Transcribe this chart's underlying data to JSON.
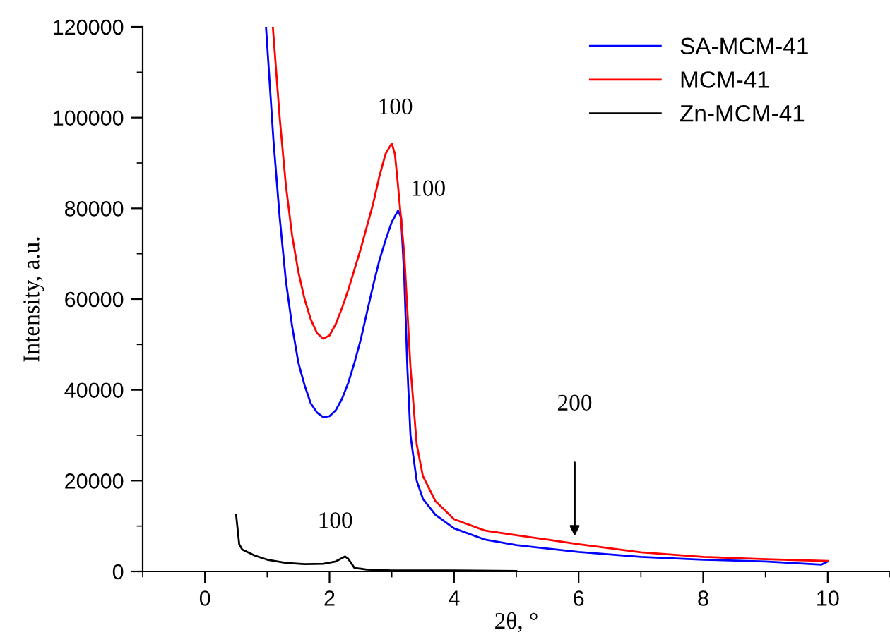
{
  "chart_data": {
    "type": "line",
    "xlabel": "2θ, °",
    "ylabel": "Intensity, a.u.",
    "xlim": [
      -1,
      11
    ],
    "ylim": [
      0,
      120000
    ],
    "xticks": [
      0,
      2,
      4,
      6,
      8,
      10
    ],
    "yticks": [
      0,
      20000,
      40000,
      60000,
      80000,
      100000,
      120000
    ],
    "grid": false,
    "legend": "top right",
    "marker": "none",
    "line_style": "solid",
    "series": [
      {
        "name": "SA-MCM-41",
        "color": "#0000ff",
        "x": [
          0.98,
          1.1,
          1.2,
          1.3,
          1.4,
          1.5,
          1.6,
          1.7,
          1.8,
          1.9,
          2.0,
          2.1,
          2.2,
          2.3,
          2.4,
          2.5,
          2.6,
          2.7,
          2.8,
          2.9,
          3.0,
          3.1,
          3.15,
          3.2,
          3.25,
          3.3,
          3.4,
          3.5,
          3.7,
          4.0,
          4.5,
          5.0,
          6,
          7,
          8,
          9,
          9.9,
          10
        ],
        "values": [
          120000,
          95000,
          78000,
          64000,
          54000,
          46000,
          41000,
          37000,
          35000,
          34000,
          34200,
          35500,
          38000,
          41500,
          46000,
          51000,
          57000,
          63000,
          68500,
          73000,
          77000,
          79500,
          78000,
          65000,
          45000,
          30000,
          20000,
          16000,
          12500,
          9500,
          7000,
          5800,
          4300,
          3200,
          2600,
          2200,
          1500,
          2200
        ]
      },
      {
        "name": "MCM-41",
        "color": "#ff0000",
        "x": [
          1.09,
          1.2,
          1.3,
          1.4,
          1.5,
          1.6,
          1.7,
          1.8,
          1.9,
          2.0,
          2.1,
          2.2,
          2.3,
          2.4,
          2.5,
          2.6,
          2.7,
          2.8,
          2.9,
          3.0,
          3.05,
          3.1,
          3.2,
          3.3,
          3.4,
          3.5,
          3.7,
          4.0,
          4.5,
          5.0,
          5.5,
          6,
          7,
          8,
          9,
          10
        ],
        "values": [
          120000,
          100000,
          85000,
          74000,
          66000,
          60000,
          55500,
          52500,
          51300,
          52000,
          54500,
          58000,
          62000,
          66500,
          71000,
          76000,
          81000,
          87000,
          92000,
          94300,
          92000,
          85000,
          70000,
          45000,
          28000,
          21000,
          15500,
          11500,
          9000,
          8000,
          7000,
          6000,
          4200,
          3200,
          2700,
          2300
        ]
      },
      {
        "name": "Zn-MCM-41",
        "color": "#000000",
        "x": [
          0.5,
          0.55,
          0.6,
          0.8,
          1.0,
          1.3,
          1.6,
          1.9,
          2.1,
          2.25,
          2.3,
          2.4,
          2.6,
          3,
          4,
          5
        ],
        "values": [
          12500,
          6000,
          4800,
          3500,
          2600,
          1900,
          1600,
          1700,
          2200,
          3300,
          2800,
          800,
          400,
          200,
          200,
          100
        ]
      }
    ],
    "annotations": [
      "100",
      "100",
      {
        "text": "100",
        "x": 2.25,
        "y": 3300
      },
      "200"
    ]
  }
}
